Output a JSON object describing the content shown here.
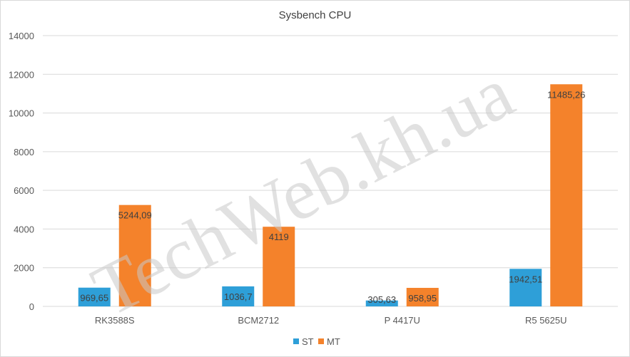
{
  "chart_data": {
    "type": "bar",
    "title": "Sysbench CPU",
    "categories": [
      "RK3588S",
      "BCM2712",
      "P 4417U",
      "R5 5625U"
    ],
    "series": [
      {
        "name": "ST",
        "color": "#2e9fd8",
        "values": [
          969.65,
          1036.7,
          305.63,
          1942.51
        ],
        "labels": [
          "969,65",
          "1036,7",
          "305,63",
          "1942,51"
        ]
      },
      {
        "name": "MT",
        "color": "#f4822b",
        "values": [
          5244.09,
          4119,
          958.95,
          11485.26
        ],
        "labels": [
          "5244,09",
          "4119",
          "958,95",
          "11485,26"
        ]
      }
    ],
    "yticks": [
      0,
      2000,
      4000,
      6000,
      8000,
      10000,
      12000,
      14000
    ],
    "ylim": [
      0,
      14000
    ],
    "grid": true,
    "legend": "bottom"
  },
  "watermark": "TechWeb.kh.ua",
  "colors": {
    "grid": "#d9d9d9",
    "text": "#595959"
  }
}
